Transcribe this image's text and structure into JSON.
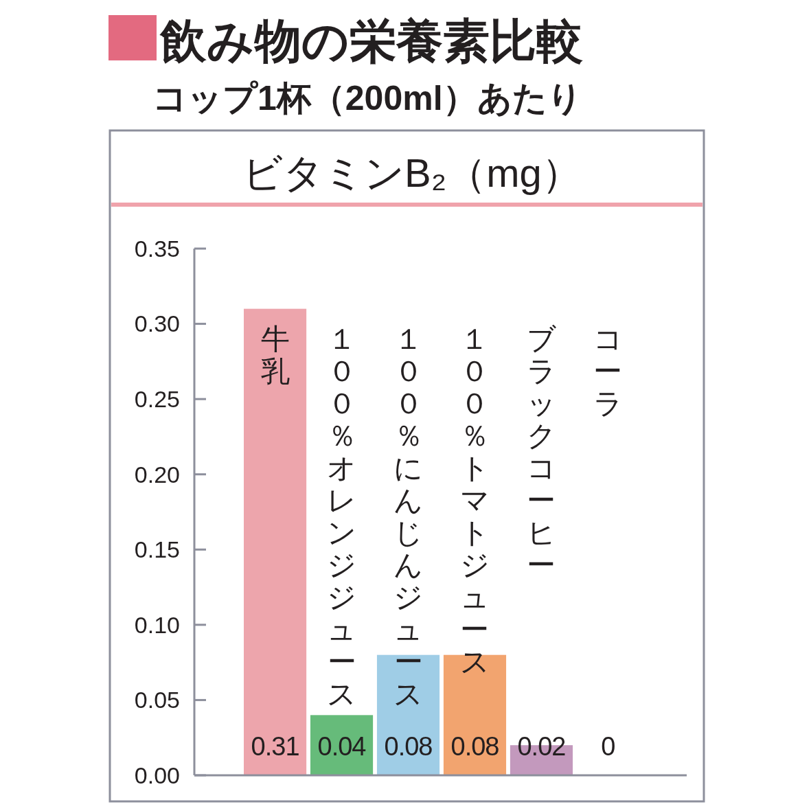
{
  "chart_data": {
    "type": "bar",
    "title": "飲み物の栄養素比較",
    "subtitle": "コップ1杯（200ml）あたり",
    "ylabel": "ビタミンB₂（mg）",
    "categories": [
      "牛乳",
      "１００％オレンジジュース",
      "１００％にんじんジュース",
      "１００％トマトジュース",
      "ブラックコーヒー",
      "コーラ"
    ],
    "values": [
      0.31,
      0.04,
      0.08,
      0.08,
      0.02,
      0
    ],
    "colors": [
      "#eda5ac",
      "#66bb7a",
      "#9fcde6",
      "#f2a46f",
      "#c399bd",
      "#c399bd"
    ],
    "ylim": [
      0,
      0.35
    ],
    "yticks": [
      {
        "value": 0,
        "label": "0.00"
      },
      {
        "value": 0.05,
        "label": "0.05"
      },
      {
        "value": 0.1,
        "label": "0.10"
      },
      {
        "value": 0.15,
        "label": "0.15"
      },
      {
        "value": 0.2,
        "label": "0.20"
      },
      {
        "value": 0.25,
        "label": "0.25"
      },
      {
        "value": 0.3,
        "label": "0.30"
      },
      {
        "value": 0.35,
        "label": "0.35"
      }
    ],
    "data_labels": true,
    "grid": false
  }
}
